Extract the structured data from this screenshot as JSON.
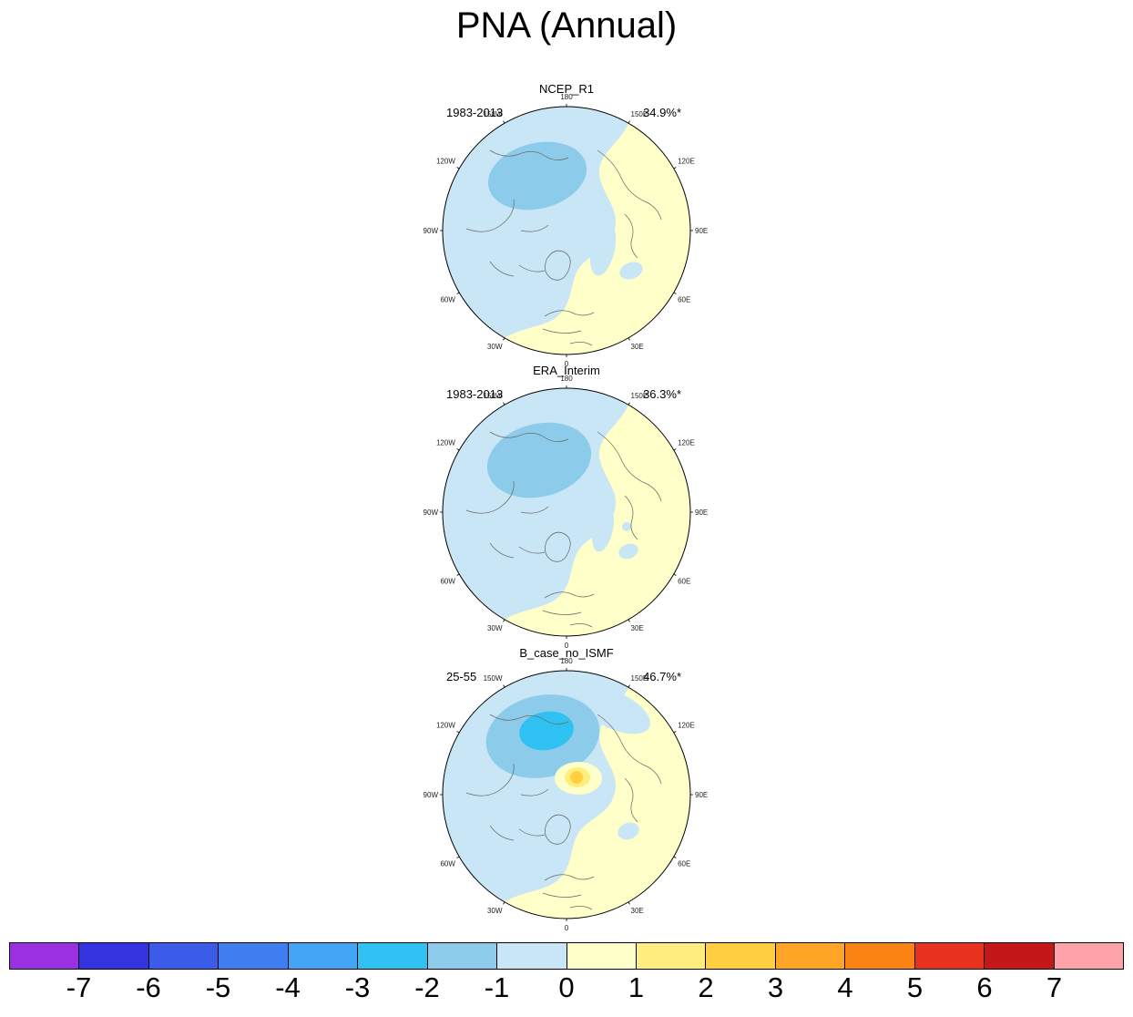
{
  "title": "PNA (Annual)",
  "panels": [
    {
      "name": "NCEP_R1",
      "period": "1983-2013",
      "variance": "34.9%*"
    },
    {
      "name": "ERA_Interim",
      "period": "1983-2013",
      "variance": "36.3%*"
    },
    {
      "name": "B_case_no_ISMF",
      "period": "25-55",
      "variance": "46.7%*"
    }
  ],
  "lon_labels": [
    "180",
    "150E",
    "120E",
    "90E",
    "60E",
    "30E",
    "0",
    "30W",
    "60W",
    "90W",
    "120W",
    "150W"
  ],
  "colorbar": {
    "tick_labels": [
      "-7",
      "-6",
      "-5",
      "-4",
      "-3",
      "-2",
      "-1",
      "0",
      "1",
      "2",
      "3",
      "4",
      "5",
      "6",
      "7"
    ],
    "colors": [
      "#9b30e0",
      "#3333e0",
      "#3b5ce8",
      "#3f7ef0",
      "#42a4f5",
      "#2fc1f2",
      "#8cccea",
      "#c9e6f6",
      "#ffffc9",
      "#ffee7e",
      "#ffcf3f",
      "#ffa425",
      "#fb8314",
      "#e8321e",
      "#c41717",
      "#ffa3ab"
    ]
  },
  "chart_data": {
    "type": "heatmap",
    "subtype": "north-polar-stereographic map panels (regression pattern)",
    "title": "PNA (Annual)",
    "panels": [
      {
        "name": "NCEP_R1",
        "period": "1983-2013",
        "variance_explained_pct": 34.9,
        "significance_marker": "*",
        "features": [
          "negative center (-2 to -1 bin) over the North Pacific",
          "broad weak negative values (-1 to 0 bin) covering North America and North Atlantic sectors",
          "weak positive values (0 to 1 bin) over most of Eurasia",
          "small -1 to 0 patches over central Siberia and near the Caspian region"
        ]
      },
      {
        "name": "ERA_Interim",
        "period": "1983-2013",
        "variance_explained_pct": 36.3,
        "significance_marker": "*",
        "features": [
          "pattern nearly identical to NCEP_R1",
          "negative North Pacific center (-2 to -1 bin)",
          "weak positive (0 to 1 bin) over Eurasia"
        ]
      },
      {
        "name": "B_case_no_ISMF",
        "period": "25-55",
        "variance_explained_pct": 46.7,
        "significance_marker": "*",
        "features": [
          "stronger negative North Pacific center with inner -3 to -2 bin core",
          "negative region extends farther along the top (East Asia/Arctic) edge",
          "small positive spot (1 to 2 bin) near the pole close to Greenland",
          "weak positive (0 to 1 bin) over Eurasia"
        ]
      }
    ],
    "colorbar": {
      "orientation": "horizontal",
      "tick_values": [
        -7,
        -6,
        -5,
        -4,
        -3,
        -2,
        -1,
        0,
        1,
        2,
        3,
        4,
        5,
        6,
        7
      ],
      "n_bins": 16,
      "colors": [
        "#9b30e0",
        "#3333e0",
        "#3b5ce8",
        "#3f7ef0",
        "#42a4f5",
        "#2fc1f2",
        "#8cccea",
        "#c9e6f6",
        "#ffffc9",
        "#ffee7e",
        "#ffcf3f",
        "#ffa425",
        "#fb8314",
        "#e8321e",
        "#c41717",
        "#ffa3ab"
      ]
    },
    "projection": {
      "type": "north polar stereographic, pole centered",
      "longitude_labels_clockwise_from_top": [
        "180",
        "150E",
        "120E",
        "90E",
        "60E",
        "30E",
        "0",
        "30W",
        "60W",
        "90W",
        "120W",
        "150W"
      ]
    }
  }
}
